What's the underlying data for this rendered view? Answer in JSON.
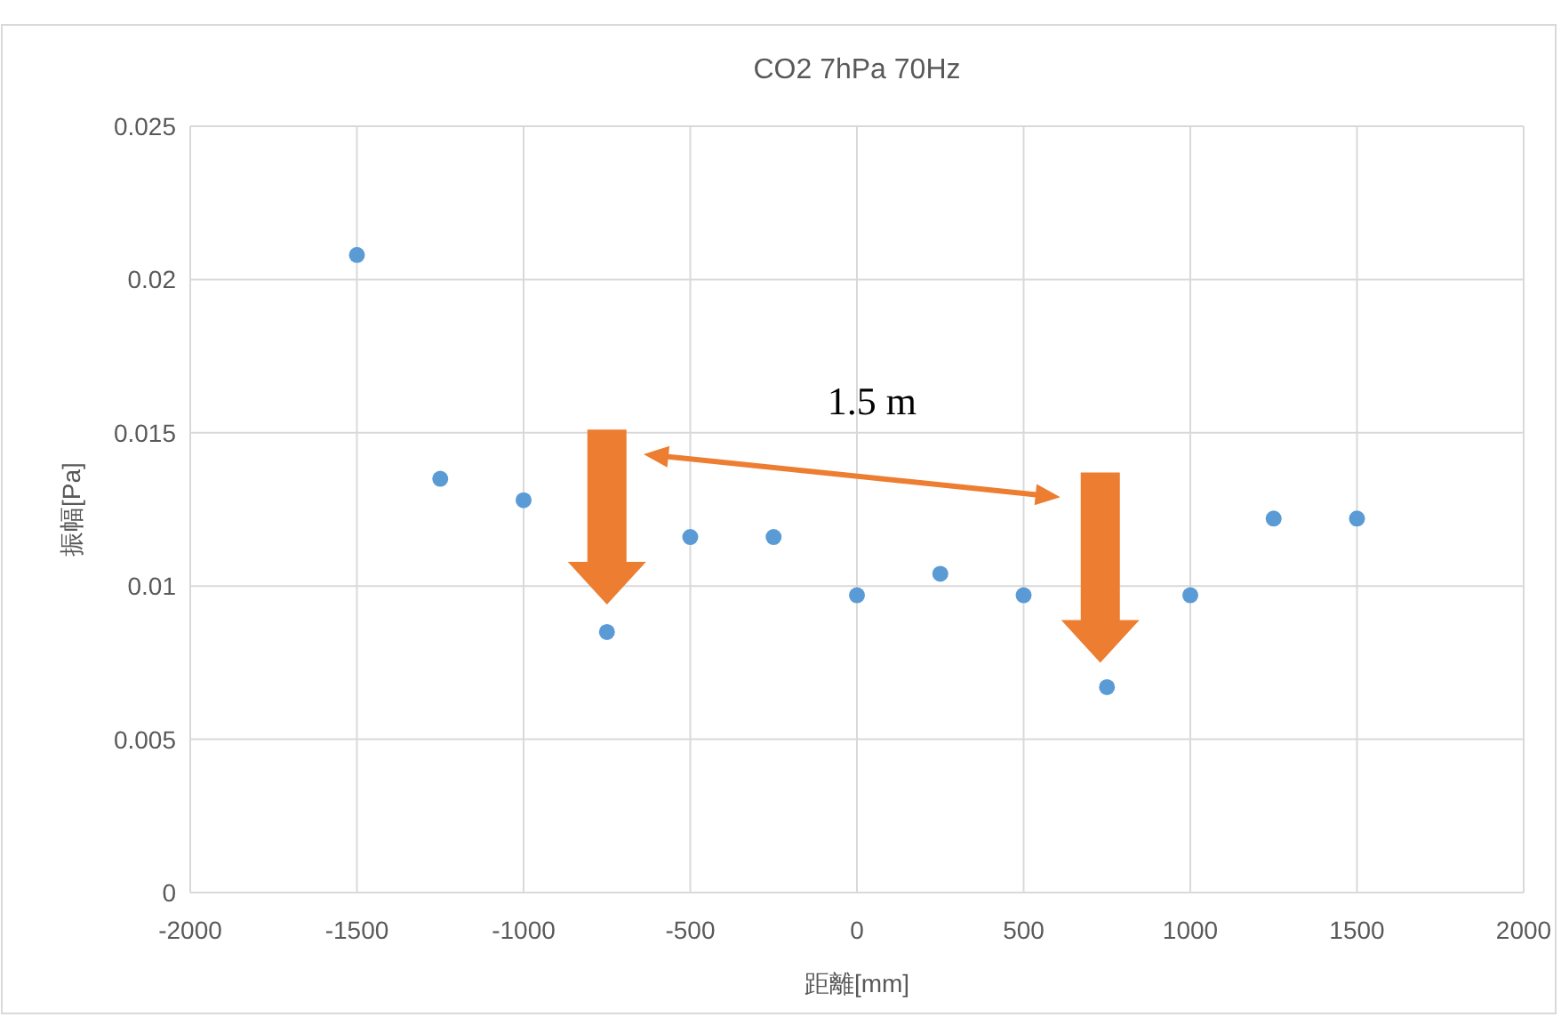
{
  "chart_data": {
    "type": "scatter",
    "title": "CO2 7hPa 70Hz",
    "xlabel": "距離[mm]",
    "ylabel": "振幅[Pa]",
    "x": [
      -1500,
      -1250,
      -1000,
      -750,
      -500,
      -250,
      0,
      250,
      500,
      750,
      1000,
      1250,
      1500
    ],
    "values": [
      0.0208,
      0.0135,
      0.0128,
      0.0085,
      0.0116,
      0.0116,
      0.0097,
      0.0104,
      0.0097,
      0.0067,
      0.0097,
      0.0122,
      0.0122
    ],
    "color": "#5b9bd5",
    "marker": "circle",
    "grid": true,
    "xlim": [
      -2000,
      2000
    ],
    "xticks": [
      -2000,
      -1500,
      -1000,
      -500,
      0,
      500,
      1000,
      1500,
      2000
    ],
    "ylim": [
      0,
      0.025
    ],
    "yticks": [
      {
        "value": 0,
        "label": "0"
      },
      {
        "value": 0.005,
        "label": "0.005"
      },
      {
        "value": 0.01,
        "label": "0.01"
      },
      {
        "value": 0.015,
        "label": "0.015"
      },
      {
        "value": 0.02,
        "label": "0.02"
      },
      {
        "value": 0.025,
        "label": "0.025"
      }
    ],
    "annotations": [
      "1.5 m"
    ]
  }
}
